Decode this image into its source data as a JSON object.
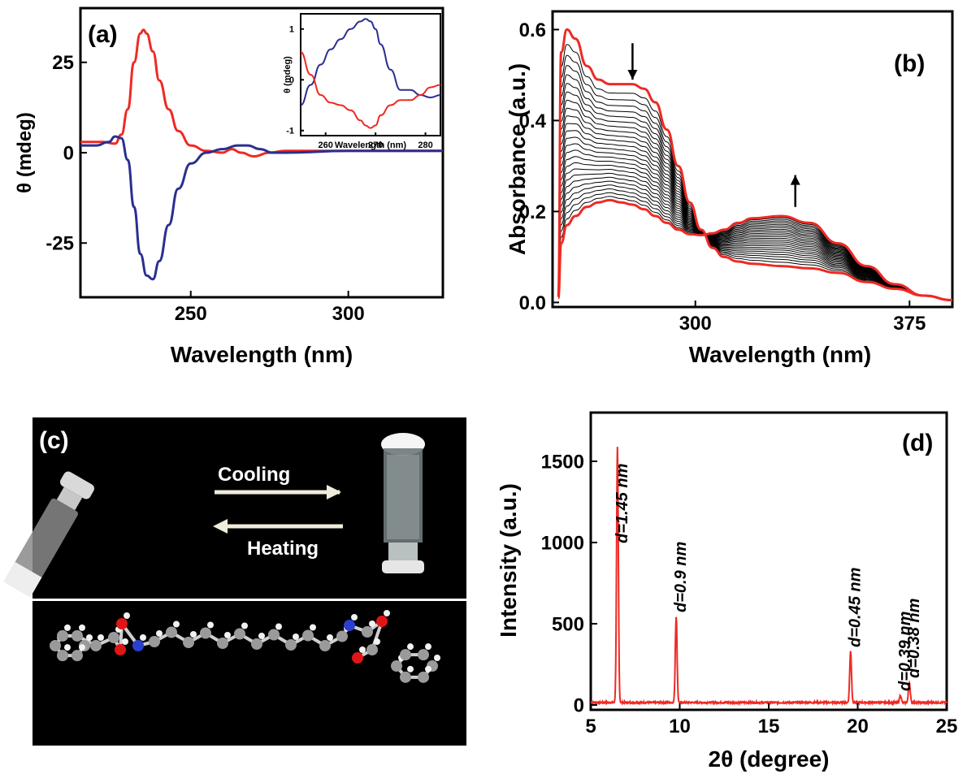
{
  "panels": {
    "a": {
      "label": "(a)",
      "ylabel": "θ (mdeg)",
      "xlabel": "Wavelength (nm)",
      "inset": {
        "xlabel": "Wavelength (nm)",
        "ylabel": "θ (mdeg)"
      }
    },
    "b": {
      "label": "(b)",
      "ylabel": "Absorbance (a.u.)",
      "xlabel": "Wavelength (nm)"
    },
    "c": {
      "label": "(c)",
      "cooling": "Cooling",
      "heating": "Heating"
    },
    "d": {
      "label": "(d)",
      "ylabel": "Intensity (a.u.)",
      "xlabel": "2θ (degree)"
    }
  },
  "colors": {
    "red": "#ee2a24",
    "blue": "#2a2f8f",
    "black": "#000000"
  },
  "chart_data": [
    {
      "id": "a",
      "type": "line",
      "xlim": [
        215,
        330
      ],
      "ylim": [
        -40,
        40
      ],
      "xticks": [
        250,
        300
      ],
      "yticks": [
        -25,
        0,
        25
      ],
      "xlabel": "Wavelength (nm)",
      "ylabel": "θ (mdeg)",
      "series": [
        {
          "color": "#ee2a24",
          "x": [
            215,
            222,
            226,
            228,
            230,
            232,
            234,
            235,
            236,
            238,
            240,
            243,
            246,
            250,
            255,
            260,
            263,
            266,
            270,
            275,
            280,
            300,
            330
          ],
          "y": [
            3,
            3,
            2.5,
            5,
            12,
            25,
            33,
            34,
            33,
            28,
            20,
            12,
            6,
            2,
            0.5,
            0,
            1,
            0,
            -1,
            0,
            0.5,
            0.5,
            0.5
          ]
        },
        {
          "color": "#2a2f8f",
          "x": [
            215,
            220,
            224,
            226,
            228,
            230,
            232,
            234,
            236,
            238,
            240,
            243,
            246,
            250,
            255,
            260,
            265,
            268,
            272,
            276,
            280,
            300,
            330
          ],
          "y": [
            2,
            2,
            3,
            4.5,
            4,
            -2,
            -15,
            -28,
            -34,
            -35,
            -30,
            -20,
            -10,
            -3,
            0,
            1,
            2,
            2,
            1,
            0,
            0,
            0.5,
            0.5
          ]
        }
      ],
      "inset": {
        "xlim": [
          255,
          283
        ],
        "ylim": [
          -1.1,
          1.3
        ],
        "xticks": [
          260,
          270,
          280
        ],
        "yticks": [
          -1,
          0,
          1
        ],
        "series": [
          {
            "color": "#2a2f8f",
            "x": [
              255,
              257,
              259,
              261,
              263,
              265,
              267,
              268,
              269,
              270,
              271,
              273,
              275,
              277,
              279,
              281,
              283
            ],
            "y": [
              -0.5,
              -0.1,
              0.3,
              0.6,
              0.8,
              1.0,
              1.15,
              1.2,
              1.15,
              1.0,
              0.7,
              0.2,
              -0.2,
              -0.2,
              -0.3,
              -0.35,
              -0.3
            ]
          },
          {
            "color": "#ee2a24",
            "x": [
              255,
              257,
              259,
              261,
              263,
              265,
              267,
              268,
              269,
              270,
              271,
              273,
              275,
              277,
              279,
              281,
              283
            ],
            "y": [
              0.55,
              0.1,
              -0.3,
              -0.45,
              -0.5,
              -0.6,
              -0.8,
              -0.9,
              -0.95,
              -0.9,
              -0.7,
              -0.5,
              -0.4,
              -0.4,
              -0.3,
              -0.15,
              -0.1
            ]
          }
        ]
      }
    },
    {
      "id": "b",
      "type": "line",
      "xlim": [
        250,
        390
      ],
      "ylim": [
        -0.01,
        0.64
      ],
      "xticks": [
        300,
        375
      ],
      "yticks": [
        0.0,
        0.2,
        0.4,
        0.6
      ],
      "xlabel": "Wavelength (nm)",
      "ylabel": "Absorbance (a.u.)",
      "arrows": [
        {
          "x": 278,
          "y0": 0.57,
          "y1": 0.49,
          "dir": "down"
        },
        {
          "x": 335,
          "y0": 0.21,
          "y1": 0.28,
          "dir": "up"
        }
      ],
      "curve_count": 26,
      "series": [
        {
          "name": "first",
          "color": "#ee2a24",
          "x": [
            252,
            253,
            255,
            258,
            262,
            266,
            270,
            274,
            278,
            282,
            286,
            290,
            294,
            298,
            302,
            306,
            310,
            315,
            320,
            330,
            340,
            350,
            360,
            370,
            380,
            390
          ],
          "y": [
            0.01,
            0.55,
            0.6,
            0.58,
            0.52,
            0.49,
            0.48,
            0.48,
            0.48,
            0.47,
            0.44,
            0.38,
            0.3,
            0.22,
            0.16,
            0.12,
            0.1,
            0.09,
            0.085,
            0.08,
            0.075,
            0.065,
            0.045,
            0.03,
            0.015,
            0.005
          ]
        },
        {
          "name": "last",
          "color": "#ee2a24",
          "x": [
            252,
            253,
            255,
            258,
            262,
            266,
            270,
            274,
            278,
            282,
            286,
            290,
            294,
            298,
            302,
            306,
            310,
            315,
            320,
            330,
            340,
            350,
            360,
            370,
            380,
            390
          ],
          "y": [
            0.01,
            0.13,
            0.17,
            0.19,
            0.21,
            0.22,
            0.225,
            0.22,
            0.215,
            0.205,
            0.19,
            0.175,
            0.16,
            0.15,
            0.148,
            0.152,
            0.16,
            0.175,
            0.185,
            0.19,
            0.175,
            0.13,
            0.08,
            0.04,
            0.015,
            0.005
          ]
        }
      ]
    },
    {
      "id": "d",
      "type": "line",
      "xlim": [
        5,
        25
      ],
      "ylim": [
        -30,
        1800
      ],
      "xticks": [
        5,
        10,
        15,
        20,
        25
      ],
      "yticks": [
        0,
        500,
        1000,
        1500
      ],
      "xlabel": "2θ (degree)",
      "ylabel": "Intensity (a.u.)",
      "peaks": [
        {
          "x": 6.5,
          "y": 1570,
          "label": "d=1.45 nm"
        },
        {
          "x": 9.8,
          "y": 530,
          "label": "d=0.9 nm"
        },
        {
          "x": 19.6,
          "y": 315,
          "label": "d=0.45 nm"
        },
        {
          "x": 22.4,
          "y": 45,
          "label": "d=0.39 nm"
        },
        {
          "x": 22.9,
          "y": 125,
          "label": "d=0.38 nm"
        }
      ],
      "baseline": 15,
      "series": [
        {
          "color": "#ee2a24"
        }
      ]
    }
  ]
}
